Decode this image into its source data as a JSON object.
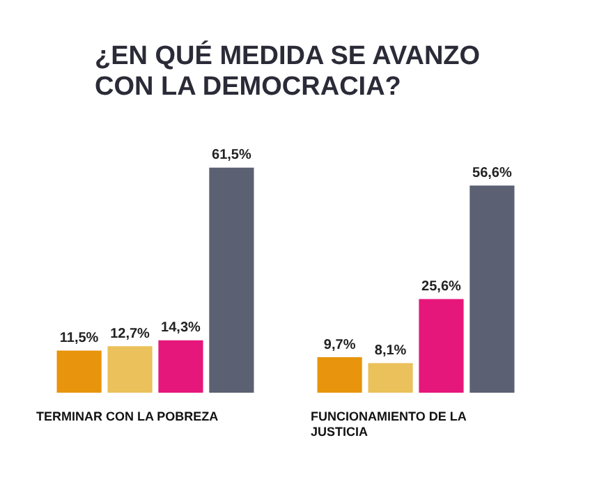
{
  "chart_data": {
    "type": "bar",
    "title": "¿EN QUÉ MEDIDA SE AVANZO CON LA DEMOCRACIA?",
    "categories": [
      "TERMINAR CON LA POBREZA",
      "FUNCIONAMIENTO DE LA JUSTICIA"
    ],
    "series": [
      {
        "color": "#e8940c",
        "values": [
          11.5,
          9.7
        ],
        "value_labels": [
          "11,5%",
          "9,7%"
        ]
      },
      {
        "color": "#eac15a",
        "values": [
          12.7,
          8.1
        ],
        "value_labels": [
          "12,7%",
          "8,1%"
        ]
      },
      {
        "color": "#e6177b",
        "values": [
          14.3,
          25.6
        ],
        "value_labels": [
          "14,3%",
          "25,6%"
        ]
      },
      {
        "color": "#5b6173",
        "values": [
          61.5,
          56.6
        ],
        "value_labels": [
          "61,5%",
          "56,6%"
        ]
      }
    ],
    "grid": false,
    "legend": false
  }
}
